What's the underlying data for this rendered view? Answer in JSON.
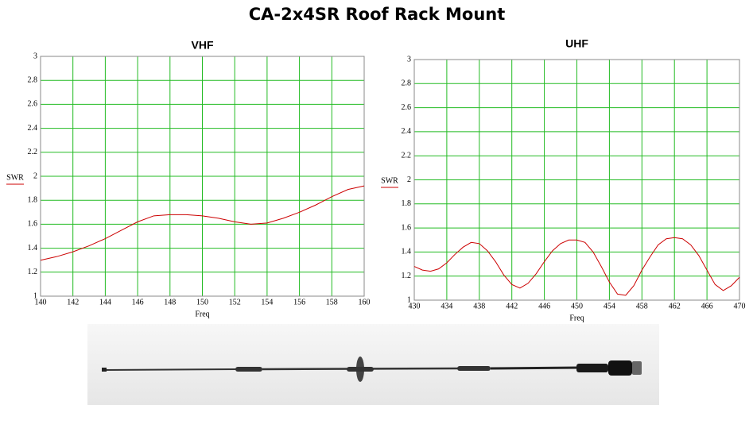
{
  "title": "CA-2x4SR  Roof Rack Mount",
  "chart_data": [
    {
      "type": "line",
      "title": "VHF",
      "x_label": "Freq",
      "x": [
        140,
        141,
        142,
        143,
        144,
        145,
        146,
        147,
        148,
        149,
        150,
        151,
        152,
        153,
        154,
        155,
        156,
        157,
        158,
        159,
        160
      ],
      "series": [
        {
          "name": "SWR",
          "color": "#cc0000",
          "values": [
            1.3,
            1.33,
            1.37,
            1.42,
            1.48,
            1.55,
            1.62,
            1.67,
            1.68,
            1.68,
            1.67,
            1.65,
            1.62,
            1.6,
            1.61,
            1.65,
            1.7,
            1.76,
            1.83,
            1.89,
            1.92
          ]
        }
      ],
      "xlim": [
        140,
        160
      ],
      "xticks": [
        140,
        142,
        144,
        146,
        148,
        150,
        152,
        154,
        156,
        158,
        160
      ],
      "ylim": [
        1,
        3
      ],
      "yticks": [
        1,
        1.2,
        1.4,
        1.6,
        1.8,
        2,
        2.2,
        2.4,
        2.6,
        2.8,
        3
      ],
      "grid": true,
      "grid_color": "#22bb22"
    },
    {
      "type": "line",
      "title": "UHF",
      "x_label": "Freq",
      "x": [
        430,
        431,
        432,
        433,
        434,
        435,
        436,
        437,
        438,
        439,
        440,
        441,
        442,
        443,
        444,
        445,
        446,
        447,
        448,
        449,
        450,
        451,
        452,
        453,
        454,
        455,
        456,
        457,
        458,
        459,
        460,
        461,
        462,
        463,
        464,
        465,
        466,
        467,
        468,
        469,
        470
      ],
      "series": [
        {
          "name": "SWR",
          "color": "#cc0000",
          "values": [
            1.28,
            1.25,
            1.24,
            1.26,
            1.31,
            1.38,
            1.44,
            1.48,
            1.47,
            1.41,
            1.32,
            1.21,
            1.13,
            1.1,
            1.14,
            1.22,
            1.32,
            1.41,
            1.47,
            1.5,
            1.5,
            1.48,
            1.4,
            1.28,
            1.15,
            1.05,
            1.04,
            1.12,
            1.25,
            1.36,
            1.46,
            1.51,
            1.52,
            1.51,
            1.46,
            1.37,
            1.25,
            1.13,
            1.08,
            1.12,
            1.19
          ]
        }
      ],
      "xlim": [
        430,
        470
      ],
      "xticks": [
        430,
        434,
        438,
        442,
        446,
        450,
        454,
        458,
        462,
        466,
        470
      ],
      "ylim": [
        1,
        3
      ],
      "yticks": [
        1,
        1.2,
        1.4,
        1.6,
        1.8,
        2,
        2.2,
        2.4,
        2.6,
        2.8,
        3
      ],
      "grid": true,
      "grid_color": "#22bb22"
    }
  ]
}
